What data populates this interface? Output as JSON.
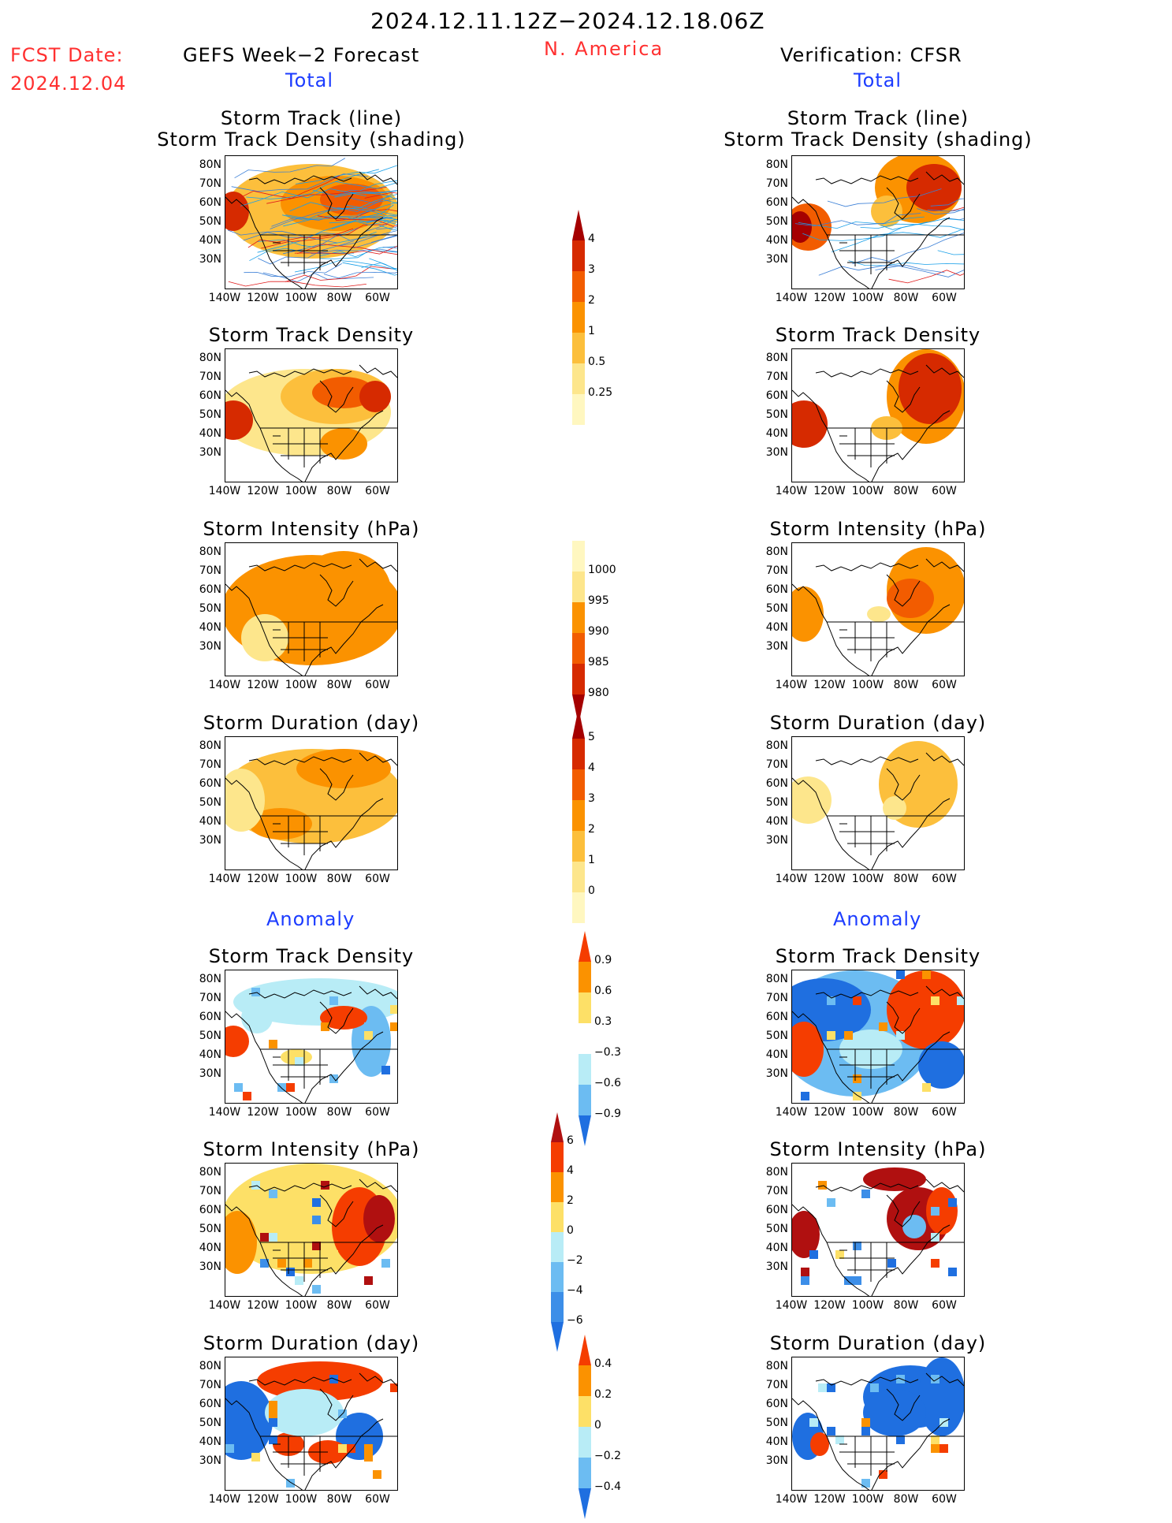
{
  "header": {
    "period": "2024.12.11.12Z−2024.12.18.06Z",
    "fcst_label": "FCST Date:",
    "fcst_date": "2024.12.04",
    "left_title": "GEFS Week−2 Forecast",
    "region": "N. America",
    "right_title": "Verification: CFSR",
    "total_left": "Total",
    "total_right": "Total",
    "anomaly_left": "Anomaly",
    "anomaly_right": "Anomaly"
  },
  "panel_titles": {
    "track_line": "Storm Track (line)",
    "track_shading": "Storm Track Density (shading)",
    "density": "Storm Track Density",
    "intensity": "Storm Intensity (hPa)",
    "duration": "Storm Duration (day)"
  },
  "axes": {
    "lat_ticks": [
      "80N",
      "70N",
      "60N",
      "50N",
      "40N",
      "30N"
    ],
    "lon_ticks": [
      "140W",
      "120W",
      "100W",
      "80W",
      "60W"
    ]
  },
  "colorbars": {
    "density_total": {
      "labels": [
        "4",
        "3",
        "2",
        "1",
        "0.5",
        "0.25"
      ],
      "colors": [
        "#a50000",
        "#d62a00",
        "#f25c00",
        "#fb9200",
        "#fcbf3c",
        "#fde68c",
        "#fff7c0"
      ]
    },
    "intensity_total": {
      "labels": [
        "1000",
        "995",
        "990",
        "985",
        "980"
      ],
      "colors": [
        "#fff7c0",
        "#fde68c",
        "#fb9200",
        "#f25c00",
        "#d62a00",
        "#a50000"
      ]
    },
    "duration_total": {
      "labels": [
        "5",
        "4",
        "3",
        "2",
        "1",
        "0"
      ],
      "colors": [
        "#a50000",
        "#d62a00",
        "#f25c00",
        "#fb9200",
        "#fcbf3c",
        "#fde68c",
        "#fff7c0"
      ]
    },
    "density_anom": {
      "labels": [
        "0.9",
        "0.6",
        "0.3",
        "−0.3",
        "−0.6",
        "−0.9"
      ],
      "colors": [
        "#f53d00",
        "#fb9200",
        "#fde067",
        "#ffffff",
        "#b8ecf6",
        "#6cbcf2",
        "#1f6fe0"
      ]
    },
    "intensity_anom": {
      "labels": [
        "6",
        "4",
        "2",
        "0",
        "−2",
        "−4",
        "−6"
      ],
      "colors": [
        "#b01010",
        "#f53d00",
        "#fb9200",
        "#fde067",
        "#b8ecf6",
        "#6cbcf2",
        "#3c8ee8",
        "#1f6fe0"
      ]
    },
    "duration_anom": {
      "labels": [
        "0.4",
        "0.2",
        "0",
        "−0.2",
        "−0.4"
      ],
      "colors": [
        "#f53d00",
        "#fb9200",
        "#fde067",
        "#b8ecf6",
        "#6cbcf2",
        "#1f6fe0"
      ]
    }
  },
  "palette": {
    "red_text": "#ff3030",
    "blue_text": "#1c3cff"
  },
  "chart_data": [
    {
      "type": "heatmap",
      "title": "Storm Track (line) / Storm Track Density (shading)",
      "column": "GEFS Week−2 Forecast",
      "section": "Total"
    },
    {
      "type": "heatmap",
      "title": "Storm Track (line) / Storm Track Density (shading)",
      "column": "Verification: CFSR",
      "section": "Total"
    },
    {
      "type": "heatmap",
      "title": "Storm Track Density",
      "column": "GEFS Week−2 Forecast",
      "section": "Total",
      "levels": [
        0.25,
        0.5,
        1,
        2,
        3,
        4
      ]
    },
    {
      "type": "heatmap",
      "title": "Storm Track Density",
      "column": "Verification: CFSR",
      "section": "Total",
      "levels": [
        0.25,
        0.5,
        1,
        2,
        3,
        4
      ]
    },
    {
      "type": "heatmap",
      "title": "Storm Intensity (hPa)",
      "column": "GEFS Week−2 Forecast",
      "section": "Total",
      "levels": [
        1000,
        995,
        990,
        985,
        980
      ]
    },
    {
      "type": "heatmap",
      "title": "Storm Intensity (hPa)",
      "column": "Verification: CFSR",
      "section": "Total",
      "levels": [
        1000,
        995,
        990,
        985,
        980
      ]
    },
    {
      "type": "heatmap",
      "title": "Storm Duration (day)",
      "column": "GEFS Week−2 Forecast",
      "section": "Total",
      "levels": [
        0,
        1,
        2,
        3,
        4,
        5
      ]
    },
    {
      "type": "heatmap",
      "title": "Storm Duration (day)",
      "column": "Verification: CFSR",
      "section": "Total",
      "levels": [
        0,
        1,
        2,
        3,
        4,
        5
      ]
    },
    {
      "type": "heatmap",
      "title": "Storm Track Density",
      "column": "GEFS Week−2 Forecast",
      "section": "Anomaly",
      "levels": [
        -0.9,
        -0.6,
        -0.3,
        0.3,
        0.6,
        0.9
      ]
    },
    {
      "type": "heatmap",
      "title": "Storm Track Density",
      "column": "Verification: CFSR",
      "section": "Anomaly",
      "levels": [
        -0.9,
        -0.6,
        -0.3,
        0.3,
        0.6,
        0.9
      ]
    },
    {
      "type": "heatmap",
      "title": "Storm Intensity (hPa)",
      "column": "GEFS Week−2 Forecast",
      "section": "Anomaly",
      "levels": [
        -6,
        -4,
        -2,
        0,
        2,
        4,
        6
      ]
    },
    {
      "type": "heatmap",
      "title": "Storm Intensity (hPa)",
      "column": "Verification: CFSR",
      "section": "Anomaly",
      "levels": [
        -6,
        -4,
        -2,
        0,
        2,
        4,
        6
      ]
    },
    {
      "type": "heatmap",
      "title": "Storm Duration (day)",
      "column": "GEFS Week−2 Forecast",
      "section": "Anomaly",
      "levels": [
        -0.4,
        -0.2,
        0,
        0.2,
        0.4
      ]
    },
    {
      "type": "heatmap",
      "title": "Storm Duration (day)",
      "column": "Verification: CFSR",
      "section": "Anomaly",
      "levels": [
        -0.4,
        -0.2,
        0,
        0.2,
        0.4
      ]
    }
  ]
}
